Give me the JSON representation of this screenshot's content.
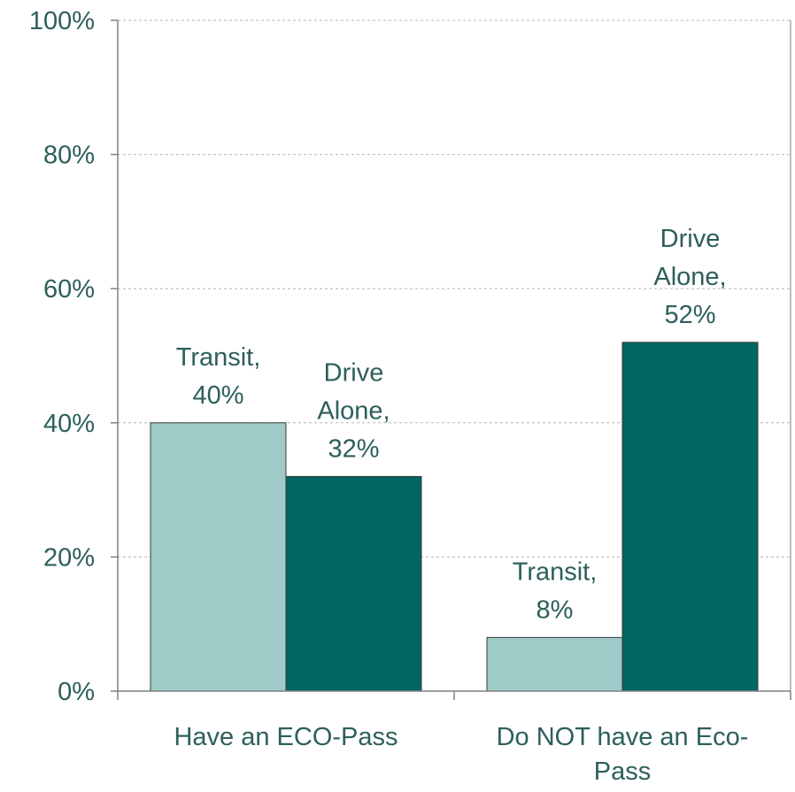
{
  "chart_data": {
    "type": "bar",
    "categories": [
      "Have an ECO-Pass",
      "Do NOT have an Eco-Pass"
    ],
    "category_label_lines": [
      [
        "Have an ECO-Pass"
      ],
      [
        "Do NOT have an Eco-",
        "Pass"
      ]
    ],
    "series": [
      {
        "name": "Transit",
        "values": [
          40,
          8
        ],
        "color": "#9ecbc8"
      },
      {
        "name": "Drive Alone",
        "values": [
          32,
          52
        ],
        "color": "#006663"
      }
    ],
    "data_labels": [
      [
        [
          "Transit,",
          "40%"
        ],
        [
          "Transit,",
          "8%"
        ]
      ],
      [
        [
          "Drive",
          "Alone,",
          "32%"
        ],
        [
          "Drive",
          "Alone,",
          "52%"
        ]
      ]
    ],
    "ylim": [
      0,
      100
    ],
    "yticks": [
      "0%",
      "20%",
      "40%",
      "60%",
      "80%",
      "100%"
    ],
    "ytick_values": [
      0,
      20,
      40,
      60,
      80,
      100
    ],
    "title": "",
    "xlabel": "",
    "ylabel": "",
    "grid": true,
    "legend": "none",
    "text_color": "#2d5f5b",
    "axis_color": "#808080"
  }
}
